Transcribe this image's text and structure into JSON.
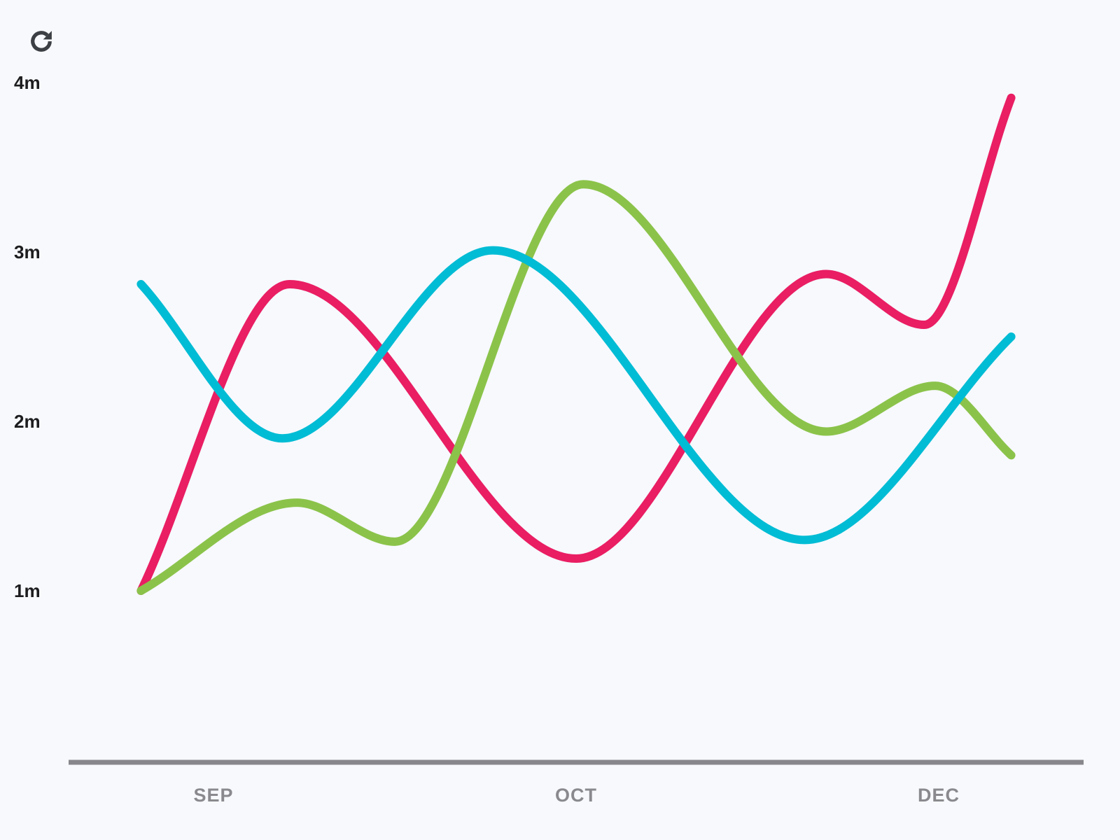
{
  "toolbar": {
    "refresh_icon": "refresh-icon"
  },
  "colors": {
    "background": "#F7F9FD",
    "axis": "#88888C"
  },
  "chart_data": {
    "type": "line",
    "curve": "smooth",
    "title": "",
    "xlabel": "",
    "ylabel": "",
    "x_ticks": [
      {
        "label": "SEP",
        "x": 0
      },
      {
        "label": "OCT",
        "x": 1
      },
      {
        "label": "DEC",
        "x": 2
      }
    ],
    "y_ticks": [
      {
        "label": "1m",
        "y": 1
      },
      {
        "label": "2m",
        "y": 2
      },
      {
        "label": "3m",
        "y": 3
      },
      {
        "label": "4m",
        "y": 4
      }
    ],
    "xlim": [
      -0.4,
      2.4
    ],
    "ylim": [
      0,
      4
    ],
    "grid": false,
    "series": [
      {
        "color": "#E91E63",
        "points": [
          [
            -0.2,
            1.0
          ],
          [
            0.21,
            2.81
          ],
          [
            1.0,
            1.19
          ],
          [
            1.69,
            2.87
          ],
          [
            1.96,
            2.57
          ],
          [
            2.2,
            3.91
          ]
        ]
      },
      {
        "color": "#8BC34A",
        "points": [
          [
            -0.2,
            1.0
          ],
          [
            0.23,
            1.52
          ],
          [
            0.5,
            1.29
          ],
          [
            1.02,
            3.4
          ],
          [
            1.69,
            1.94
          ],
          [
            1.99,
            2.21
          ],
          [
            2.2,
            1.8
          ]
        ]
      },
      {
        "color": "#00BCD4",
        "points": [
          [
            -0.2,
            2.81
          ],
          [
            0.19,
            1.9
          ],
          [
            0.77,
            3.01
          ],
          [
            1.63,
            1.3
          ],
          [
            2.2,
            2.5
          ]
        ]
      }
    ]
  }
}
